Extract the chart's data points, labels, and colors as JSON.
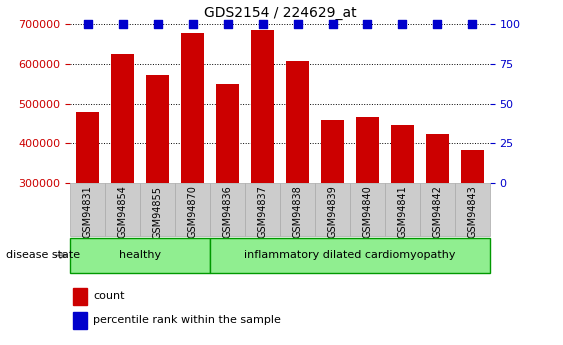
{
  "title": "GDS2154 / 224629_at",
  "samples": [
    "GSM94831",
    "GSM94854",
    "GSM94855",
    "GSM94870",
    "GSM94836",
    "GSM94837",
    "GSM94838",
    "GSM94839",
    "GSM94840",
    "GSM94841",
    "GSM94842",
    "GSM94843"
  ],
  "counts": [
    478000,
    625000,
    572000,
    678000,
    549000,
    685000,
    608000,
    458000,
    465000,
    447000,
    422000,
    383000
  ],
  "group_labels": [
    "healthy",
    "inflammatory dilated cardiomyopathy"
  ],
  "group_sizes": [
    4,
    8
  ],
  "bar_color": "#cc0000",
  "dot_color": "#0000cc",
  "ylim_left": [
    300000,
    700000
  ],
  "ylim_right": [
    0,
    100
  ],
  "yticks_left": [
    300000,
    400000,
    500000,
    600000,
    700000
  ],
  "yticks_right": [
    0,
    25,
    50,
    75,
    100
  ],
  "left_tick_color": "#cc0000",
  "right_tick_color": "#0000cc",
  "bar_width": 0.65,
  "dot_size": 35,
  "dot_yval": 100,
  "label_bg": "#cccccc",
  "healthy_color": "#90ee90",
  "disease_color": "#90ee90",
  "healthy_edge": "#009900",
  "disease_edge": "#009900",
  "legend_count_color": "#cc0000",
  "legend_pct_color": "#0000cc",
  "grid_color": "#000000",
  "title_fontsize": 10,
  "axis_fontsize": 8,
  "bar_label_fontsize": 7,
  "legend_fontsize": 8,
  "group_fontsize": 8
}
